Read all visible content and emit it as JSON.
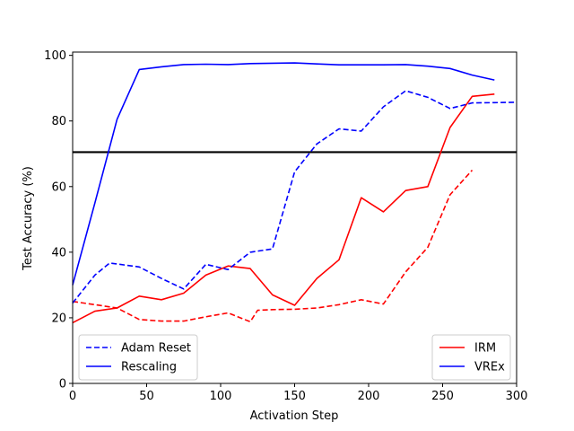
{
  "chart_data": {
    "type": "line",
    "title": "",
    "xlabel": "Activation Step",
    "ylabel": "Test Accuracy (%)",
    "xlim": [
      0,
      300
    ],
    "ylim": [
      0,
      101
    ],
    "xticks": [
      0,
      50,
      100,
      150,
      200,
      250,
      300
    ],
    "yticks": [
      0,
      20,
      40,
      60,
      80,
      100
    ],
    "grid": false,
    "reference_line": {
      "y": 70.5,
      "color": "#000000"
    },
    "series": [
      {
        "key": "irm_adam_reset",
        "color": "#ff0000",
        "style": "dashed",
        "x": [
          0,
          15,
          30,
          45,
          60,
          75,
          90,
          105,
          120,
          125,
          135,
          150,
          165,
          180,
          195,
          210,
          225,
          240,
          255,
          270
        ],
        "y": [
          25,
          24,
          23,
          19.5,
          19,
          19,
          20.3,
          21.5,
          18.8,
          22.3,
          22.5,
          22.6,
          23,
          24,
          25.5,
          24.2,
          34,
          41.5,
          57.5,
          65
        ]
      },
      {
        "key": "irm_rescaling",
        "color": "#ff0000",
        "style": "solid",
        "x": [
          0,
          15,
          30,
          45,
          60,
          75,
          90,
          105,
          120,
          135,
          150,
          165,
          180,
          195,
          210,
          225,
          240,
          255,
          270,
          285
        ],
        "y": [
          18.5,
          22,
          23,
          26.6,
          25.5,
          27.5,
          33,
          35.8,
          35,
          27,
          23.8,
          32,
          37.7,
          56.6,
          52.3,
          58.8,
          60,
          78,
          87.5,
          88.2
        ]
      },
      {
        "key": "vrex_adam_reset",
        "color": "#0000ff",
        "style": "dashed",
        "x": [
          0,
          15,
          25,
          45,
          60,
          75,
          90,
          105,
          120,
          135,
          150,
          165,
          180,
          195,
          210,
          225,
          240,
          255,
          270,
          285,
          300
        ],
        "y": [
          24.5,
          33,
          36.7,
          35.5,
          32,
          28.8,
          36.3,
          34.7,
          40,
          41,
          64.5,
          73,
          77.6,
          76.9,
          84.3,
          89.2,
          87.2,
          83.8,
          85.5,
          85.6,
          85.7
        ]
      },
      {
        "key": "vrex_rescaling",
        "color": "#0000ff",
        "style": "solid",
        "x": [
          0,
          15,
          30,
          45,
          60,
          75,
          90,
          105,
          120,
          135,
          150,
          165,
          180,
          195,
          210,
          225,
          240,
          255,
          270,
          285
        ],
        "y": [
          30,
          55,
          80.5,
          95.7,
          96.5,
          97.2,
          97.3,
          97.2,
          97.5,
          97.6,
          97.7,
          97.4,
          97.1,
          97.1,
          97.1,
          97.2,
          96.7,
          96,
          94,
          92.5
        ]
      }
    ],
    "legends": [
      {
        "position": "lower-left",
        "entries": [
          {
            "label": "Adam Reset",
            "color": "#0000ff",
            "style": "dashed"
          },
          {
            "label": "Rescaling",
            "color": "#0000ff",
            "style": "solid"
          }
        ]
      },
      {
        "position": "lower-right",
        "entries": [
          {
            "label": "IRM",
            "color": "#ff0000",
            "style": "solid"
          },
          {
            "label": "VREx",
            "color": "#0000ff",
            "style": "solid"
          }
        ]
      }
    ]
  }
}
